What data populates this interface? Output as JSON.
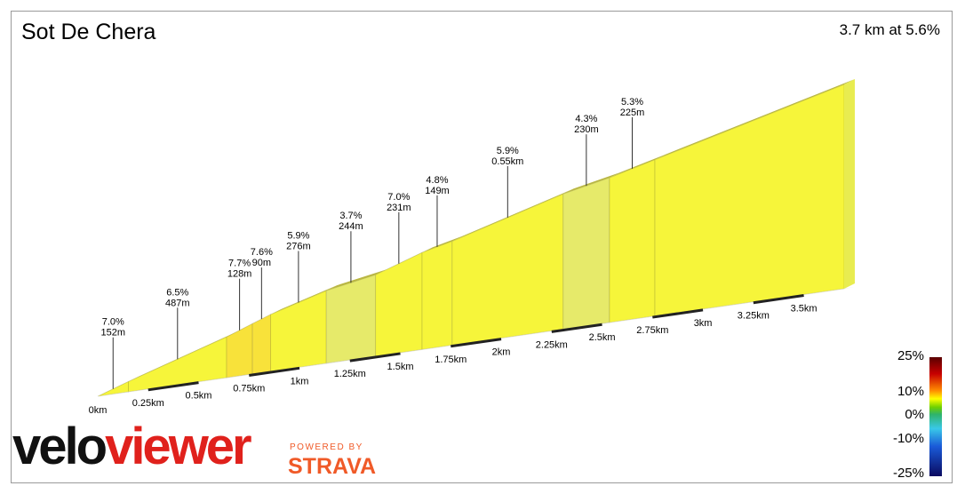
{
  "header": {
    "title": "Sot De Chera",
    "summary": "3.7 km at 5.6%"
  },
  "legend": {
    "labels": [
      "25%",
      "10%",
      "0%",
      "-10%",
      "-25%"
    ]
  },
  "branding": {
    "logo_part1": "velo",
    "logo_part2": "viewer",
    "powered_by": "POWERED BY",
    "partner": "STRAVA"
  },
  "colors": {
    "profile_fill": "#f6f53a",
    "profile_fill_light": "#e6ea6a",
    "profile_fill_orange": "#f8e23a",
    "accent_red": "#e0211c",
    "strava_orange": "#f05a28"
  },
  "chart_data": {
    "type": "area",
    "title": "Sot De Chera",
    "subtitle": "3.7 km at 5.6%",
    "x_unit": "km",
    "x_tick_labels": [
      "0km",
      "0.25km",
      "0.5km",
      "0.75km",
      "1km",
      "1.25km",
      "1.5km",
      "1.75km",
      "2km",
      "2.25km",
      "2.5km",
      "2.75km",
      "3km",
      "3.25km",
      "3.5km"
    ],
    "x_ticks": [
      0,
      0.25,
      0.5,
      0.75,
      1.0,
      1.25,
      1.5,
      1.75,
      2.0,
      2.25,
      2.5,
      2.75,
      3.0,
      3.25,
      3.5
    ],
    "xlim": [
      0,
      3.7
    ],
    "segments": [
      {
        "grade": "7.0%",
        "length": "152m",
        "start_km": 0.0,
        "end_km": 0.152
      },
      {
        "grade": "6.5%",
        "length": "487m",
        "start_km": 0.152,
        "end_km": 0.639
      },
      {
        "grade": "7.7%",
        "length": "128m",
        "start_km": 0.639,
        "end_km": 0.767
      },
      {
        "grade": "7.6%",
        "length": "90m",
        "start_km": 0.767,
        "end_km": 0.857
      },
      {
        "grade": "5.9%",
        "length": "276m",
        "start_km": 0.857,
        "end_km": 1.133
      },
      {
        "grade": "3.7%",
        "length": "244m",
        "start_km": 1.133,
        "end_km": 1.377
      },
      {
        "grade": "7.0%",
        "length": "231m",
        "start_km": 1.377,
        "end_km": 1.608
      },
      {
        "grade": "4.8%",
        "length": "149m",
        "start_km": 1.608,
        "end_km": 1.757
      },
      {
        "grade": "5.9%",
        "length": "0.55km",
        "start_km": 1.757,
        "end_km": 2.307
      },
      {
        "grade": "4.3%",
        "length": "230m",
        "start_km": 2.307,
        "end_km": 2.537
      },
      {
        "grade": "5.3%",
        "length": "225m",
        "start_km": 2.537,
        "end_km": 2.762
      }
    ],
    "grade_scale": {
      "min": -25,
      "max": 25,
      "ticks": [
        25,
        10,
        0,
        -10,
        -25
      ]
    }
  }
}
